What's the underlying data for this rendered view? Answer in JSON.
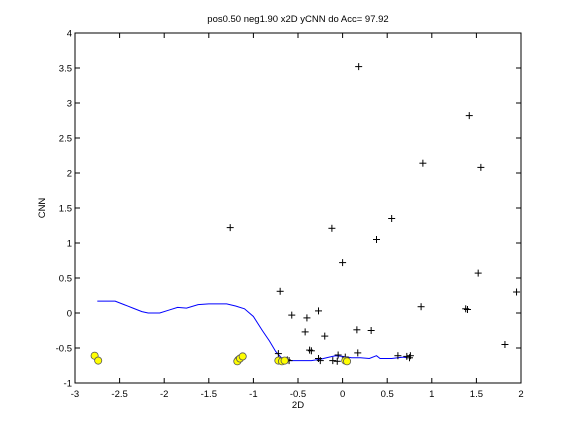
{
  "chart_data": {
    "type": "scatter",
    "title": "pos0.50 neg1.90 x2D yCNN do Acc= 97.92",
    "xlabel": "2D",
    "ylabel": "CNN",
    "xlim": [
      -3,
      2
    ],
    "ylim": [
      -1,
      4
    ],
    "grid": false,
    "x_ticks": [
      -3,
      -2.5,
      -2,
      -1.5,
      -1,
      -0.5,
      0,
      0.5,
      1,
      1.5,
      2
    ],
    "x_tick_labels": [
      "-3",
      "-2.5",
      "-2",
      "-1.5",
      "-1",
      "-0.5",
      "0",
      "0.5",
      "1",
      "1.5",
      "2"
    ],
    "y_ticks": [
      -1,
      -0.5,
      0,
      0.5,
      1,
      1.5,
      2,
      2.5,
      3,
      3.5,
      4
    ],
    "y_tick_labels": [
      "-1",
      "-0.5",
      "0",
      "0.5",
      "1",
      "1.5",
      "2",
      "2.5",
      "3",
      "3.5",
      "4"
    ],
    "series": [
      {
        "marker": "plus",
        "color": "#000000",
        "points": [
          [
            0.18,
            3.52
          ],
          [
            1.42,
            2.82
          ],
          [
            0.9,
            2.14
          ],
          [
            1.55,
            2.08
          ],
          [
            -1.26,
            1.22
          ],
          [
            -0.12,
            1.21
          ],
          [
            0.55,
            1.35
          ],
          [
            0.38,
            1.05
          ],
          [
            0.0,
            0.72
          ],
          [
            1.52,
            0.57
          ],
          [
            -0.7,
            0.31
          ],
          [
            1.95,
            0.3
          ],
          [
            0.88,
            0.09
          ],
          [
            1.38,
            0.06
          ],
          [
            1.4,
            0.05
          ],
          [
            -0.57,
            -0.03
          ],
          [
            -0.4,
            -0.07
          ],
          [
            -0.27,
            0.03
          ],
          [
            -0.42,
            -0.27
          ],
          [
            0.16,
            -0.24
          ],
          [
            0.32,
            -0.25
          ],
          [
            -0.2,
            -0.33
          ],
          [
            1.82,
            -0.45
          ],
          [
            -0.37,
            -0.53
          ],
          [
            -0.35,
            -0.54
          ],
          [
            -0.72,
            -0.58
          ],
          [
            0.17,
            -0.57
          ],
          [
            0.62,
            -0.61
          ],
          [
            0.72,
            -0.62
          ],
          [
            0.75,
            -0.64
          ],
          [
            0.76,
            -0.61
          ],
          [
            -0.05,
            -0.6
          ],
          [
            0.03,
            -0.63
          ],
          [
            -0.27,
            -0.65
          ],
          [
            -0.11,
            -0.68
          ],
          [
            -0.06,
            -0.69
          ],
          [
            -0.7,
            -0.68
          ],
          [
            -0.6,
            -0.68
          ],
          [
            -0.62,
            -0.67
          ],
          [
            -0.25,
            -0.68
          ]
        ]
      },
      {
        "marker": "circle",
        "color": "#ffff00",
        "edge": "#555555",
        "points": [
          [
            -2.78,
            -0.61
          ],
          [
            -2.74,
            -0.68
          ],
          [
            -1.17,
            -0.67
          ],
          [
            -1.18,
            -0.69
          ],
          [
            -1.15,
            -0.65
          ],
          [
            -1.12,
            -0.62
          ],
          [
            -0.72,
            -0.68
          ],
          [
            -0.68,
            -0.69
          ],
          [
            -0.65,
            -0.68
          ],
          [
            0.03,
            -0.68
          ],
          [
            0.05,
            -0.69
          ]
        ]
      },
      {
        "marker": "line",
        "color": "#0000ff",
        "points": [
          [
            -2.75,
            0.17
          ],
          [
            -2.55,
            0.17
          ],
          [
            -2.45,
            0.12
          ],
          [
            -2.35,
            0.07
          ],
          [
            -2.25,
            0.02
          ],
          [
            -2.18,
            0.0
          ],
          [
            -2.05,
            0.0
          ],
          [
            -1.95,
            0.04
          ],
          [
            -1.85,
            0.08
          ],
          [
            -1.75,
            0.07
          ],
          [
            -1.62,
            0.12
          ],
          [
            -1.5,
            0.13
          ],
          [
            -1.3,
            0.13
          ],
          [
            -1.2,
            0.1
          ],
          [
            -1.1,
            0.06
          ],
          [
            -1.0,
            -0.05
          ],
          [
            -0.9,
            -0.25
          ],
          [
            -0.82,
            -0.4
          ],
          [
            -0.75,
            -0.55
          ],
          [
            -0.68,
            -0.65
          ],
          [
            -0.58,
            -0.68
          ],
          [
            -0.45,
            -0.68
          ],
          [
            -0.35,
            -0.68
          ],
          [
            -0.25,
            -0.66
          ],
          [
            -0.15,
            -0.63
          ],
          [
            -0.08,
            -0.61
          ],
          [
            0.0,
            -0.62
          ],
          [
            0.1,
            -0.64
          ],
          [
            0.2,
            -0.64
          ],
          [
            0.3,
            -0.65
          ],
          [
            0.38,
            -0.61
          ],
          [
            0.42,
            -0.65
          ],
          [
            0.55,
            -0.65
          ],
          [
            0.62,
            -0.64
          ],
          [
            0.68,
            -0.63
          ],
          [
            0.72,
            -0.64
          ]
        ]
      }
    ]
  }
}
